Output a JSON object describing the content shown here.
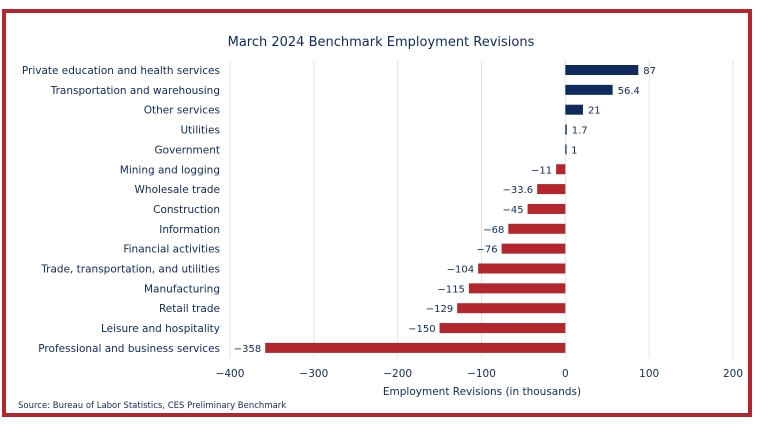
{
  "chart_data": {
    "type": "bar",
    "orientation": "horizontal",
    "title": "March 2024 Benchmark Employment Revisions",
    "xlabel": "Employment Revisions (in thousands)",
    "ylabel": "",
    "source": "Source: Bureau of Labor Statistics, CES Preliminary Benchmark",
    "categories": [
      "Private education and health services",
      "Transportation and warehousing",
      "Other services",
      "Utilities",
      "Government",
      "Mining and logging",
      "Wholesale trade",
      "Construction",
      "Information",
      "Financial activities",
      "Trade, transportation, and utilities",
      "Manufacturing",
      "Retail trade",
      "Leisure and hospitality",
      "Professional and business services"
    ],
    "values": [
      87,
      56.4,
      21,
      1.7,
      1,
      -11,
      -33.6,
      -45,
      -68,
      -76,
      -104,
      -115,
      -129,
      -150,
      -358
    ],
    "value_labels": [
      "87",
      "56.4",
      "21",
      "1.7",
      "1",
      "−11",
      "−33.6",
      "−45",
      "−68",
      "−76",
      "−104",
      "−115",
      "−129",
      "−150",
      "−358"
    ],
    "xlim": [
      -400,
      200
    ],
    "xticks": [
      -400,
      -300,
      -200,
      -100,
      0,
      100,
      200
    ],
    "xtick_labels": [
      "−400",
      "−300",
      "−200",
      "−100",
      "0",
      "100",
      "200"
    ],
    "grid": true,
    "colors": {
      "positive": "#0f2a5c",
      "negative": "#b3262d",
      "text": "#0f2a5c",
      "frame": "#b3262d"
    }
  }
}
